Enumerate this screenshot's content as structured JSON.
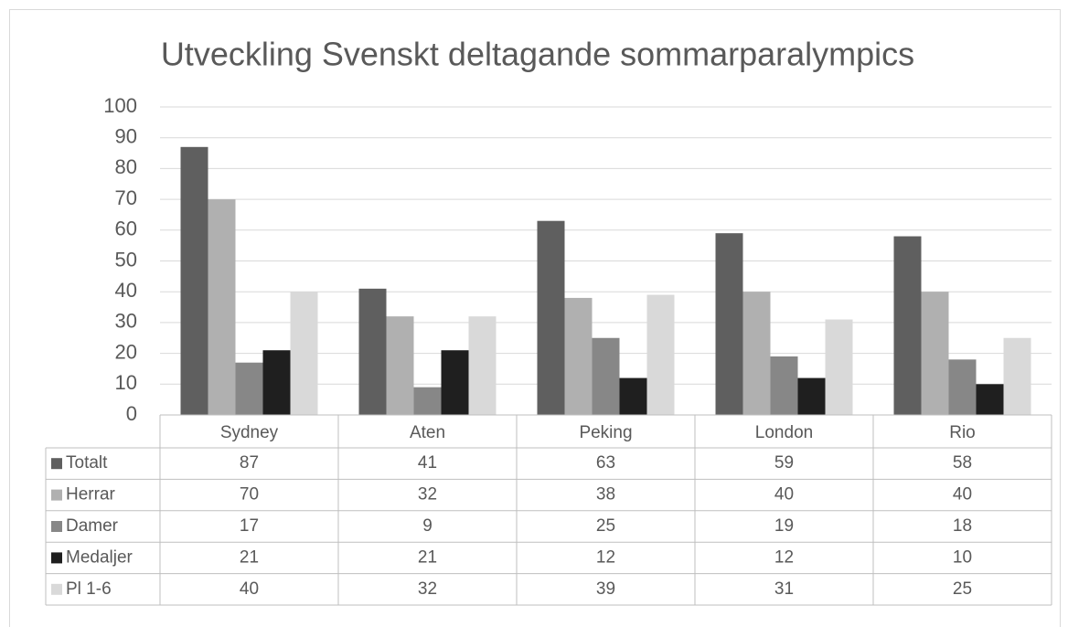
{
  "chart_data": {
    "type": "bar",
    "title": "Utveckling Svenskt deltagande sommarparalympics",
    "categories": [
      "Sydney",
      "Aten",
      "Peking",
      "London",
      "Rio"
    ],
    "series": [
      {
        "name": "Totalt",
        "color": "#5f5f5f",
        "values": [
          87,
          41,
          63,
          59,
          58
        ]
      },
      {
        "name": "Herrar",
        "color": "#b0b0b0",
        "values": [
          70,
          32,
          38,
          40,
          40
        ]
      },
      {
        "name": "Damer",
        "color": "#878787",
        "values": [
          17,
          9,
          25,
          19,
          18
        ]
      },
      {
        "name": "Medaljer",
        "color": "#1f1f1f",
        "values": [
          21,
          21,
          12,
          12,
          10
        ]
      },
      {
        "name": "Pl 1-6",
        "color": "#d9d9d9",
        "values": [
          40,
          32,
          39,
          31,
          25
        ]
      }
    ],
    "ylim": [
      0,
      100
    ],
    "yticks": [
      0,
      10,
      20,
      30,
      40,
      50,
      60,
      70,
      80,
      90,
      100
    ],
    "grid": true,
    "data_table": true
  }
}
